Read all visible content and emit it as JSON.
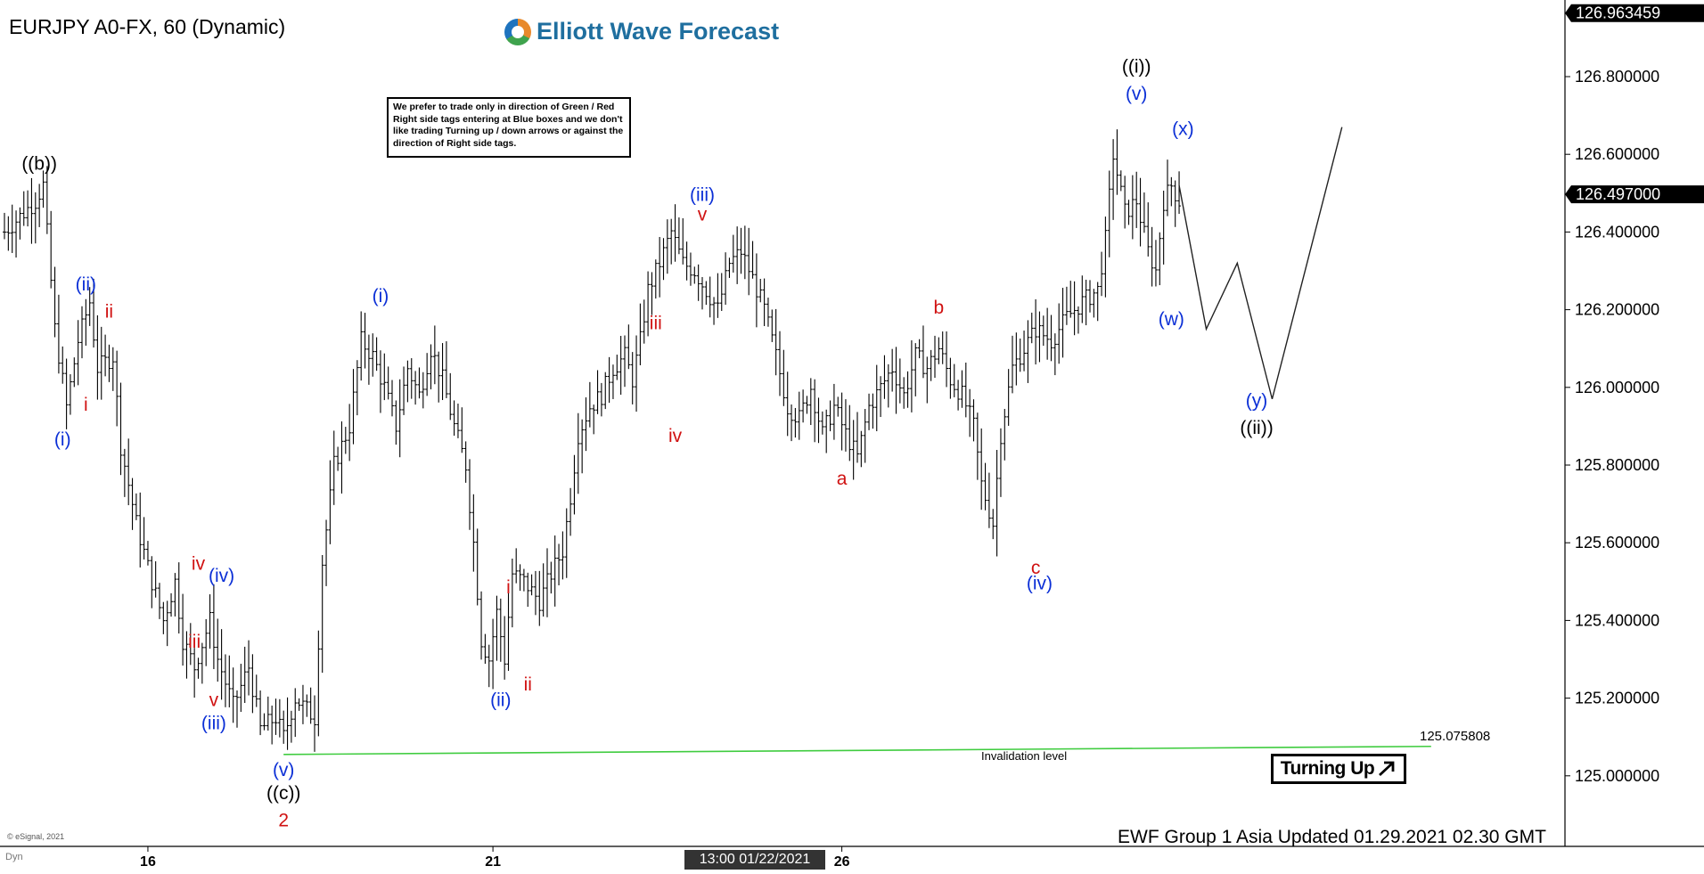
{
  "header": {
    "symbol_title": "EURJPY A0-FX, 60 (Dynamic)"
  },
  "logo": {
    "text": "Elliott Wave Forecast",
    "icon": "ewf-logo-icon"
  },
  "note": {
    "text": "We prefer to trade only in direction of Green / Red Right side tags entering at Blue boxes and we don't like trading Turning up / down arrows or against the direction of Right side tags."
  },
  "footer": {
    "update_text": "EWF Group 1 Asia Updated 01.29.2021 02.30 GMT",
    "copyright": "© eSignal, 2021",
    "dyn": "Dyn"
  },
  "turning_up": {
    "label": "Turning Up",
    "icon": "arrow-up-right-icon"
  },
  "time_badge": "13:00 01/22/2021",
  "invalidation": {
    "label": "Invalidation level",
    "price_label": "125.075808",
    "price": 125.0758
  },
  "colors": {
    "blue": "#0b2fd6",
    "red": "#d01212",
    "black": "#000000",
    "green": "#3fcc3f"
  },
  "chart_data": {
    "type": "bar",
    "subtype": "ohlc",
    "ylim": [
      124.8,
      127.0
    ],
    "y_ticks": [
      {
        "value": 126.8,
        "label": "126.800000"
      },
      {
        "value": 126.6,
        "label": "126.600000"
      },
      {
        "value": 126.4,
        "label": "126.400000"
      },
      {
        "value": 126.2,
        "label": "126.200000"
      },
      {
        "value": 126.0,
        "label": "126.000000"
      },
      {
        "value": 125.8,
        "label": "125.800000"
      },
      {
        "value": 125.6,
        "label": "125.600000"
      },
      {
        "value": 125.4,
        "label": "125.400000"
      },
      {
        "value": 125.2,
        "label": "125.200000"
      },
      {
        "value": 125.0,
        "label": "125.000000"
      }
    ],
    "price_boxes": [
      {
        "value": 126.963459,
        "label": "126.963459"
      },
      {
        "value": 126.497,
        "label": "126.497000"
      }
    ],
    "x_ticks": [
      {
        "bar": 37,
        "label": "16"
      },
      {
        "bar": 126,
        "label": "21"
      },
      {
        "bar": 216,
        "label": "26"
      }
    ],
    "price_path": [
      [
        0,
        126.4
      ],
      [
        8,
        126.48
      ],
      [
        10,
        126.52
      ],
      [
        13,
        126.15
      ],
      [
        16,
        125.95
      ],
      [
        19,
        126.12
      ],
      [
        22,
        126.22
      ],
      [
        24,
        126.05
      ],
      [
        28,
        126.08
      ],
      [
        30,
        125.85
      ],
      [
        34,
        125.65
      ],
      [
        38,
        125.5
      ],
      [
        41,
        125.4
      ],
      [
        44,
        125.5
      ],
      [
        46,
        125.35
      ],
      [
        49,
        125.28
      ],
      [
        53,
        125.4
      ],
      [
        55,
        125.3
      ],
      [
        59,
        125.18
      ],
      [
        63,
        125.28
      ],
      [
        66,
        125.12
      ],
      [
        70,
        125.15
      ],
      [
        72,
        125.1
      ],
      [
        75,
        125.2
      ],
      [
        80,
        125.15
      ],
      [
        82,
        125.55
      ],
      [
        85,
        125.8
      ],
      [
        89,
        125.9
      ],
      [
        92,
        126.12
      ],
      [
        95,
        126.08
      ],
      [
        98,
        126.0
      ],
      [
        101,
        125.9
      ],
      [
        104,
        126.05
      ],
      [
        107,
        125.98
      ],
      [
        110,
        126.1
      ],
      [
        113,
        126.02
      ],
      [
        116,
        125.9
      ],
      [
        119,
        125.8
      ],
      [
        121,
        125.6
      ],
      [
        123,
        125.35
      ],
      [
        125,
        125.3
      ],
      [
        127,
        125.42
      ],
      [
        129,
        125.3
      ],
      [
        131,
        125.52
      ],
      [
        134,
        125.5
      ],
      [
        138,
        125.45
      ],
      [
        141,
        125.52
      ],
      [
        144,
        125.58
      ],
      [
        146,
        125.72
      ],
      [
        148,
        125.88
      ],
      [
        151,
        125.95
      ],
      [
        154,
        125.98
      ],
      [
        157,
        126.05
      ],
      [
        160,
        126.08
      ],
      [
        162,
        126.02
      ],
      [
        164,
        126.12
      ],
      [
        166,
        126.25
      ],
      [
        169,
        126.32
      ],
      [
        172,
        126.4
      ],
      [
        175,
        126.32
      ],
      [
        178,
        126.3
      ],
      [
        181,
        126.25
      ],
      [
        184,
        126.2
      ],
      [
        187,
        126.32
      ],
      [
        190,
        126.35
      ],
      [
        193,
        126.28
      ],
      [
        196,
        126.2
      ],
      [
        199,
        126.08
      ],
      [
        202,
        125.95
      ],
      [
        205,
        125.92
      ],
      [
        208,
        126.0
      ],
      [
        211,
        125.88
      ],
      [
        214,
        125.95
      ],
      [
        217,
        125.88
      ],
      [
        220,
        125.82
      ],
      [
        223,
        125.95
      ],
      [
        226,
        126.0
      ],
      [
        229,
        126.05
      ],
      [
        232,
        125.98
      ],
      [
        235,
        126.08
      ],
      [
        238,
        126.05
      ],
      [
        241,
        126.1
      ],
      [
        244,
        126.02
      ],
      [
        247,
        125.98
      ],
      [
        250,
        125.9
      ],
      [
        252,
        125.75
      ],
      [
        255,
        125.65
      ],
      [
        257,
        125.88
      ],
      [
        260,
        126.05
      ],
      [
        263,
        126.1
      ],
      [
        266,
        126.15
      ],
      [
        270,
        126.12
      ],
      [
        274,
        126.18
      ],
      [
        278,
        126.22
      ],
      [
        282,
        126.25
      ],
      [
        284,
        126.38
      ],
      [
        286,
        126.6
      ],
      [
        289,
        126.45
      ],
      [
        292,
        126.48
      ],
      [
        295,
        126.35
      ],
      [
        297,
        126.3
      ],
      [
        299,
        126.48
      ],
      [
        301,
        126.52
      ],
      [
        303,
        126.48
      ]
    ],
    "projection": [
      [
        303,
        126.52
      ],
      [
        310,
        126.15
      ],
      [
        318,
        126.32
      ],
      [
        327,
        125.97
      ],
      [
        345,
        126.67
      ]
    ],
    "wave_labels": [
      {
        "text": "((b))",
        "bar": 9,
        "price": 126.56,
        "color": "black"
      },
      {
        "text": "(i)",
        "bar": 15,
        "price": 125.85,
        "color": "blue"
      },
      {
        "text": "(ii)",
        "bar": 21,
        "price": 126.25,
        "color": "blue"
      },
      {
        "text": "ii",
        "bar": 27,
        "price": 126.18,
        "color": "red"
      },
      {
        "text": "i",
        "bar": 21,
        "price": 125.94,
        "color": "red"
      },
      {
        "text": "iv",
        "bar": 50,
        "price": 125.53,
        "color": "red"
      },
      {
        "text": "(iv)",
        "bar": 56,
        "price": 125.5,
        "color": "blue"
      },
      {
        "text": "iii",
        "bar": 49,
        "price": 125.33,
        "color": "red"
      },
      {
        "text": "v",
        "bar": 54,
        "price": 125.18,
        "color": "red"
      },
      {
        "text": "(iii)",
        "bar": 54,
        "price": 125.12,
        "color": "blue"
      },
      {
        "text": "(v)",
        "bar": 72,
        "price": 125.0,
        "color": "blue"
      },
      {
        "text": "((c))",
        "bar": 72,
        "price": 124.94,
        "color": "black"
      },
      {
        "text": "2",
        "bar": 72,
        "price": 124.87,
        "color": "red"
      },
      {
        "text": "(i)",
        "bar": 97,
        "price": 126.22,
        "color": "blue"
      },
      {
        "text": "i",
        "bar": 130,
        "price": 125.47,
        "color": "red"
      },
      {
        "text": "(ii)",
        "bar": 128,
        "price": 125.18,
        "color": "blue"
      },
      {
        "text": "ii",
        "bar": 135,
        "price": 125.22,
        "color": "red"
      },
      {
        "text": "iii",
        "bar": 168,
        "price": 126.15,
        "color": "red"
      },
      {
        "text": "iv",
        "bar": 173,
        "price": 125.86,
        "color": "red"
      },
      {
        "text": "(iii)",
        "bar": 180,
        "price": 126.48,
        "color": "blue"
      },
      {
        "text": "v",
        "bar": 180,
        "price": 126.43,
        "color": "red"
      },
      {
        "text": "a",
        "bar": 216,
        "price": 125.75,
        "color": "red"
      },
      {
        "text": "b",
        "bar": 241,
        "price": 126.19,
        "color": "red"
      },
      {
        "text": "c",
        "bar": 266,
        "price": 125.52,
        "color": "red"
      },
      {
        "text": "(iv)",
        "bar": 267,
        "price": 125.48,
        "color": "blue"
      },
      {
        "text": "((i))",
        "bar": 292,
        "price": 126.81,
        "color": "black"
      },
      {
        "text": "(v)",
        "bar": 292,
        "price": 126.74,
        "color": "blue"
      },
      {
        "text": "(x)",
        "bar": 304,
        "price": 126.65,
        "color": "blue"
      },
      {
        "text": "(w)",
        "bar": 301,
        "price": 126.16,
        "color": "blue"
      },
      {
        "text": "(y)",
        "bar": 323,
        "price": 125.95,
        "color": "blue"
      },
      {
        "text": "((ii))",
        "bar": 323,
        "price": 125.88,
        "color": "black"
      }
    ]
  }
}
